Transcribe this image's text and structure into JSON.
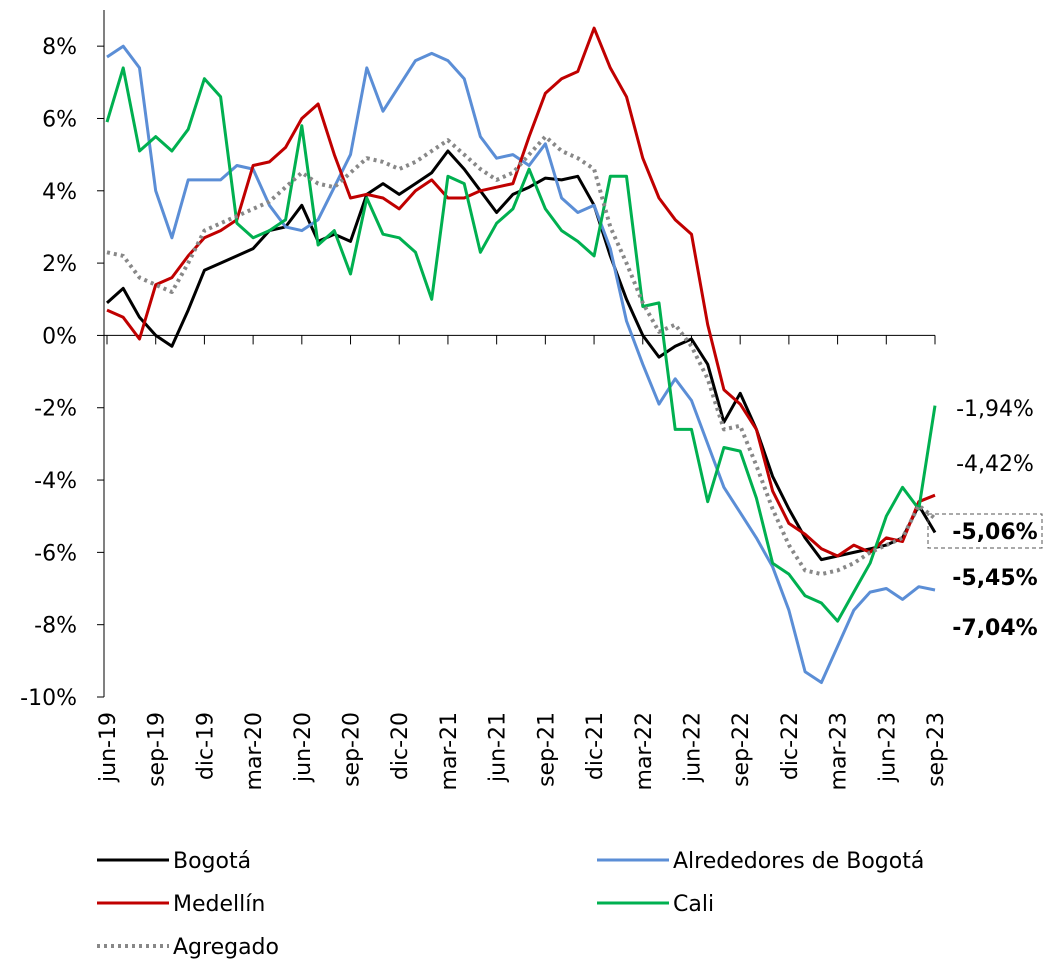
{
  "chart_data": {
    "type": "line",
    "categories": [
      "jun-19",
      null,
      null,
      "sep-19",
      null,
      null,
      "dic-19",
      null,
      null,
      "mar-20",
      null,
      null,
      "jun-20",
      null,
      null,
      "sep-20",
      null,
      null,
      "dic-20",
      null,
      null,
      "mar-21",
      null,
      null,
      "jun-21",
      null,
      null,
      "sep-21",
      null,
      null,
      "dic-21",
      null,
      null,
      "mar-22",
      null,
      null,
      "jun-22",
      null,
      null,
      "sep-22",
      null,
      null,
      "dic-22",
      null,
      null,
      "mar-23",
      null,
      null,
      "jun-23",
      null,
      null,
      "sep-23"
    ],
    "ylim": [
      -10,
      9
    ],
    "yticks": [
      {
        "value": 8,
        "label": "8%"
      },
      {
        "value": 6,
        "label": "6%"
      },
      {
        "value": 4,
        "label": "4%"
      },
      {
        "value": 2,
        "label": "2%"
      },
      {
        "value": 0,
        "label": "0%"
      },
      {
        "value": -2,
        "label": "-2%"
      },
      {
        "value": -4,
        "label": "-4%"
      },
      {
        "value": -6,
        "label": "-6%"
      },
      {
        "value": -8,
        "label": "-8%"
      },
      {
        "value": -10,
        "label": "-10%"
      }
    ],
    "legend": "bottom",
    "series": [
      {
        "name": "Bogotá",
        "color": "#000000",
        "dash": "solid",
        "values": [
          0.9,
          1.3,
          0.5,
          0,
          -0.3,
          0.7,
          1.8,
          2.0,
          2.2,
          2.4,
          2.9,
          3.0,
          3.6,
          2.6,
          2.8,
          2.6,
          3.9,
          4.2,
          3.9,
          4.2,
          4.5,
          5.1,
          4.6,
          4.0,
          3.4,
          3.9,
          4.1,
          4.35,
          4.3,
          4.4,
          3.6,
          2.2,
          1.0,
          0.0,
          -0.6,
          -0.3,
          -0.1,
          -0.8,
          -2.4,
          -1.6,
          -2.6,
          -3.9,
          -4.8,
          -5.6,
          -6.2,
          -6.1,
          -6.0,
          -5.9,
          -5.8,
          -5.6,
          -4.7,
          -5.45
        ],
        "value_labels": [
          null,
          null,
          null,
          null,
          null,
          null,
          null,
          null,
          null,
          null,
          null,
          null,
          null,
          null,
          null,
          null,
          null,
          null,
          null,
          null,
          null,
          null,
          null,
          null,
          null,
          null,
          null,
          null,
          null,
          null,
          null,
          null,
          null,
          null,
          null,
          null,
          null,
          null,
          null,
          null,
          null,
          null,
          null,
          null,
          null,
          null,
          null,
          null,
          null,
          null,
          null,
          "-5,45%"
        ]
      },
      {
        "name": "Alrededores de Bogotá",
        "color": "#5B8ED6",
        "dash": "solid",
        "values": [
          7.7,
          8.0,
          7.4,
          4.0,
          2.7,
          4.3,
          4.3,
          4.3,
          4.7,
          4.6,
          3.6,
          3.0,
          2.9,
          3.2,
          4.1,
          5.0,
          7.4,
          6.2,
          6.9,
          7.6,
          7.8,
          7.6,
          7.1,
          5.5,
          4.9,
          5.0,
          4.7,
          5.3,
          3.8,
          3.4,
          3.6,
          2.4,
          0.4,
          -0.8,
          -1.9,
          -1.2,
          -1.8,
          -3.0,
          -4.2,
          -4.9,
          -5.6,
          -6.4,
          -7.6,
          -9.3,
          -9.6,
          -8.6,
          -7.6,
          -7.1,
          -7.0,
          -7.3,
          -6.95,
          -7.04
        ],
        "value_labels": [
          null,
          null,
          null,
          null,
          null,
          null,
          null,
          null,
          null,
          null,
          null,
          null,
          null,
          null,
          null,
          null,
          null,
          null,
          null,
          null,
          null,
          null,
          null,
          null,
          null,
          null,
          null,
          null,
          null,
          null,
          null,
          null,
          null,
          null,
          null,
          null,
          null,
          null,
          null,
          null,
          null,
          null,
          null,
          null,
          null,
          null,
          null,
          null,
          null,
          null,
          null,
          "-7,04%"
        ]
      },
      {
        "name": "Medellín",
        "color": "#C00000",
        "dash": "solid",
        "values": [
          0.7,
          0.5,
          -0.1,
          1.4,
          1.6,
          2.2,
          2.7,
          2.9,
          3.2,
          4.7,
          4.8,
          5.2,
          6.0,
          6.4,
          5.0,
          3.8,
          3.9,
          3.8,
          3.5,
          4.0,
          4.3,
          3.8,
          3.8,
          4.0,
          4.1,
          4.2,
          5.5,
          6.7,
          7.1,
          7.3,
          8.5,
          7.4,
          6.6,
          4.9,
          3.8,
          3.2,
          2.8,
          0.3,
          -1.5,
          -1.9,
          -2.6,
          -4.3,
          -5.2,
          -5.5,
          -5.9,
          -6.1,
          -5.8,
          -6.0,
          -5.6,
          -5.7,
          -4.6,
          -4.42
        ],
        "value_labels": [
          null,
          null,
          null,
          null,
          null,
          null,
          null,
          null,
          null,
          null,
          null,
          null,
          null,
          null,
          null,
          null,
          null,
          null,
          null,
          null,
          null,
          null,
          null,
          null,
          null,
          null,
          null,
          null,
          null,
          null,
          null,
          null,
          null,
          null,
          null,
          null,
          null,
          null,
          null,
          null,
          null,
          null,
          null,
          null,
          null,
          null,
          null,
          null,
          null,
          null,
          null,
          "-4,42%"
        ]
      },
      {
        "name": "Cali",
        "color": "#00B050",
        "dash": "solid",
        "values": [
          5.9,
          7.4,
          5.1,
          5.5,
          5.1,
          5.7,
          7.1,
          6.6,
          3.1,
          2.7,
          2.9,
          3.2,
          5.8,
          2.5,
          2.9,
          1.7,
          3.8,
          2.8,
          2.7,
          2.3,
          1.0,
          4.4,
          4.2,
          2.3,
          3.1,
          3.5,
          4.6,
          3.5,
          2.9,
          2.6,
          2.2,
          4.4,
          4.4,
          0.8,
          0.9,
          -2.6,
          -2.6,
          -4.6,
          -3.1,
          -3.2,
          -4.5,
          -6.3,
          -6.6,
          -7.2,
          -7.4,
          -7.9,
          -7.1,
          -6.3,
          -5.0,
          -4.2,
          -4.8,
          -1.94
        ],
        "value_labels": [
          null,
          null,
          null,
          null,
          null,
          null,
          null,
          null,
          null,
          null,
          null,
          null,
          null,
          null,
          null,
          null,
          null,
          null,
          null,
          null,
          null,
          null,
          null,
          null,
          null,
          null,
          null,
          null,
          null,
          null,
          null,
          null,
          null,
          null,
          null,
          null,
          null,
          null,
          null,
          null,
          null,
          null,
          null,
          null,
          null,
          null,
          null,
          null,
          null,
          null,
          null,
          "-1,94%"
        ]
      },
      {
        "name": "Agregado",
        "color": "#888888",
        "dash": "dotted",
        "values": [
          2.3,
          2.2,
          1.6,
          1.4,
          1.2,
          2.0,
          2.9,
          3.1,
          3.3,
          3.5,
          3.7,
          4.1,
          4.5,
          4.2,
          4.1,
          4.5,
          4.9,
          4.8,
          4.6,
          4.8,
          5.1,
          5.4,
          5.0,
          4.6,
          4.3,
          4.5,
          5.0,
          5.5,
          5.1,
          4.9,
          4.6,
          3.0,
          2.0,
          0.9,
          0.1,
          0.3,
          -0.3,
          -1.2,
          -2.6,
          -2.5,
          -3.6,
          -4.8,
          -5.8,
          -6.5,
          -6.6,
          -6.5,
          -6.3,
          -6.0,
          -5.8,
          -5.6,
          -4.7,
          -5.06
        ],
        "value_labels": [
          null,
          null,
          null,
          null,
          null,
          null,
          null,
          null,
          null,
          null,
          null,
          null,
          null,
          null,
          null,
          null,
          null,
          null,
          null,
          null,
          null,
          null,
          null,
          null,
          null,
          null,
          null,
          null,
          null,
          null,
          null,
          null,
          null,
          null,
          null,
          null,
          null,
          null,
          null,
          null,
          null,
          null,
          null,
          null,
          null,
          null,
          null,
          null,
          null,
          null,
          null,
          "-5,06%"
        ]
      }
    ]
  }
}
